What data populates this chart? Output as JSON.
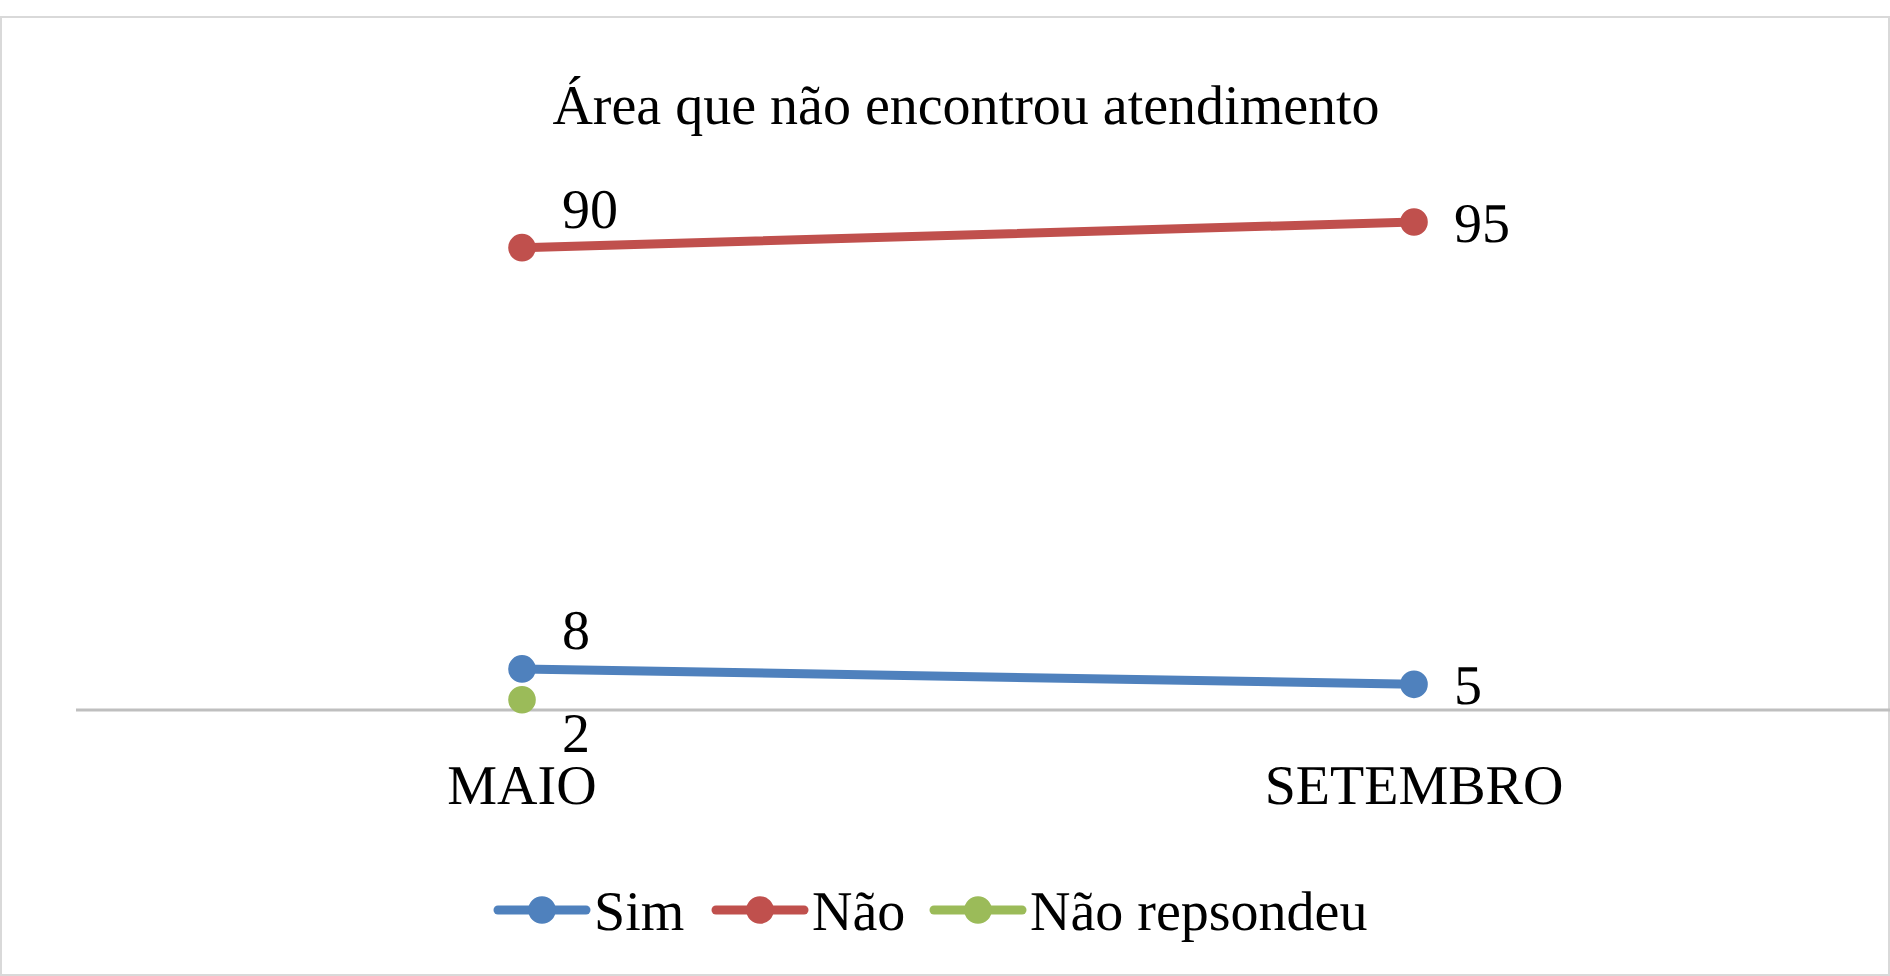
{
  "chart_data": {
    "type": "line",
    "title": "Área que não encontrou atendimento",
    "categories": [
      "MAIO",
      "SETEMBRO"
    ],
    "tick_labels": "x",
    "data_labels": true,
    "marker": "circle",
    "legend": "bottom",
    "series": [
      {
        "name": "Sim",
        "color": "#4f81bd",
        "values": [
          8,
          5
        ]
      },
      {
        "name": "Não",
        "color": "#c0504d",
        "values": [
          90,
          95
        ]
      },
      {
        "name": "Não repsondeu",
        "color": "#9bbb59",
        "values": [
          2,
          null
        ]
      }
    ]
  }
}
